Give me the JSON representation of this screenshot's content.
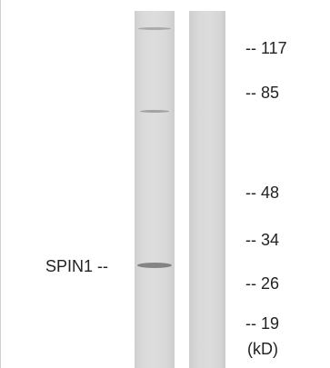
{
  "protein_label": "SPIN1 --",
  "markers": [
    {
      "text": "-- 117"
    },
    {
      "text": "-- 85"
    },
    {
      "text": "-- 48"
    },
    {
      "text": "-- 34"
    },
    {
      "text": "-- 26"
    },
    {
      "text": "-- 19"
    }
  ],
  "unit_label": "(kD)"
}
